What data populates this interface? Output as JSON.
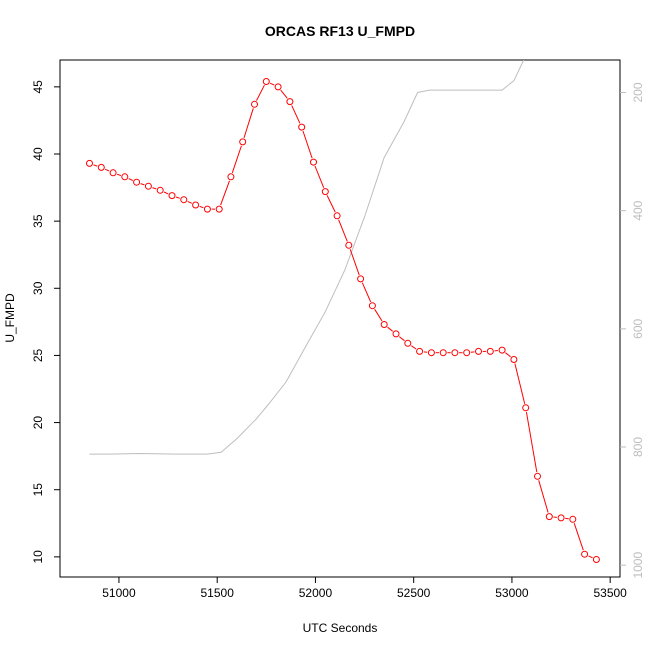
{
  "chart_data": {
    "type": "line",
    "title": "ORCAS RF13 U_FMPD",
    "xlabel": "UTC Seconds",
    "ylabel": "U_FMPD",
    "xlim": [
      50700,
      53550
    ],
    "ylim": [
      8.5,
      47
    ],
    "y2lim": [
      1020,
      145
    ],
    "y2_reversed": true,
    "x_ticks": [
      51000,
      51500,
      52000,
      52500,
      53000,
      53500
    ],
    "y_ticks": [
      10,
      15,
      20,
      25,
      30,
      35,
      40,
      45
    ],
    "y2_ticks": [
      200,
      400,
      600,
      800,
      1000
    ],
    "colors": {
      "primary": "#ff0000",
      "secondary": "#bebebe",
      "axis": "#000000",
      "secondary_axis": "#bdbdbd"
    },
    "series": [
      {
        "style": "points-and-lines",
        "color": "#ff0000",
        "axis": "left",
        "x": [
          50850,
          50910,
          50970,
          51030,
          51090,
          51150,
          51210,
          51270,
          51330,
          51390,
          51450,
          51510,
          51570,
          51630,
          51690,
          51750,
          51810,
          51870,
          51930,
          51990,
          52050,
          52110,
          52170,
          52230,
          52290,
          52350,
          52410,
          52470,
          52530,
          52590,
          52650,
          52710,
          52770,
          52830,
          52890,
          52950,
          53010,
          53070,
          53130,
          53190,
          53250,
          53310,
          53370,
          53430
        ],
        "y": [
          39.3,
          39.0,
          38.6,
          38.3,
          37.9,
          37.6,
          37.3,
          36.9,
          36.6,
          36.2,
          35.9,
          35.9,
          38.3,
          40.9,
          43.7,
          45.4,
          45.0,
          43.9,
          42.0,
          39.4,
          37.2,
          35.4,
          33.2,
          30.7,
          28.7,
          27.3,
          26.6,
          25.9,
          25.3,
          25.2,
          25.2,
          25.2,
          25.2,
          25.3,
          25.3,
          25.4,
          24.7,
          21.1,
          16.0,
          13.0,
          12.9,
          12.8,
          10.2,
          9.8
        ]
      },
      {
        "style": "line",
        "color": "#bebebe",
        "axis": "right",
        "x": [
          50850,
          50950,
          51100,
          51300,
          51450,
          51520,
          51600,
          51700,
          51760,
          51850,
          51950,
          52050,
          52150,
          52250,
          52350,
          52450,
          52520,
          52580,
          52650,
          52750,
          52850,
          52950,
          53010,
          53060
        ],
        "y": [
          812,
          812,
          811,
          812,
          812,
          809,
          786,
          752,
          728,
          690,
          630,
          571,
          500,
          410,
          310,
          250,
          200,
          196,
          196,
          196,
          196,
          196,
          180,
          145
        ]
      }
    ]
  }
}
